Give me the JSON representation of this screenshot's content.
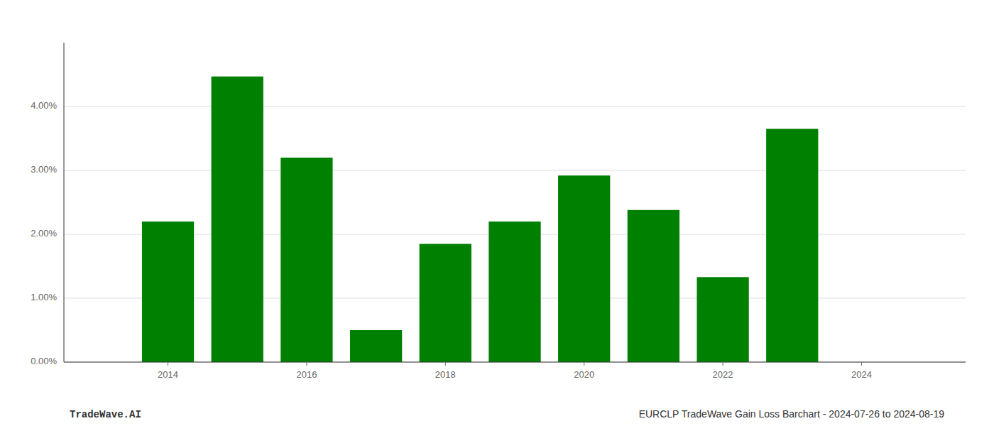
{
  "chart_data": {
    "type": "bar",
    "x": [
      2014,
      2015,
      2016,
      2017,
      2018,
      2019,
      2020,
      2021,
      2022,
      2023
    ],
    "values": [
      0.022,
      0.0447,
      0.032,
      0.005,
      0.0185,
      0.022,
      0.0292,
      0.0238,
      0.0133,
      0.0365
    ],
    "color": "#008000",
    "xlim": [
      2012.5,
      2025.5
    ],
    "xticks": [
      2014,
      2016,
      2018,
      2020,
      2022,
      2024
    ],
    "ylim": [
      0,
      0.05
    ],
    "yticks": [
      {
        "value": 0.0,
        "label": "0.00%"
      },
      {
        "value": 0.01,
        "label": "1.00%"
      },
      {
        "value": 0.02,
        "label": "2.00%"
      },
      {
        "value": 0.03,
        "label": "3.00%"
      },
      {
        "value": 0.04,
        "label": "4.00%"
      }
    ],
    "grid": true,
    "annotations": [
      "TradeWave.AI",
      "EURCLP TradeWave Gain Loss Barchart - 2024-07-26 to 2024-08-19"
    ]
  }
}
